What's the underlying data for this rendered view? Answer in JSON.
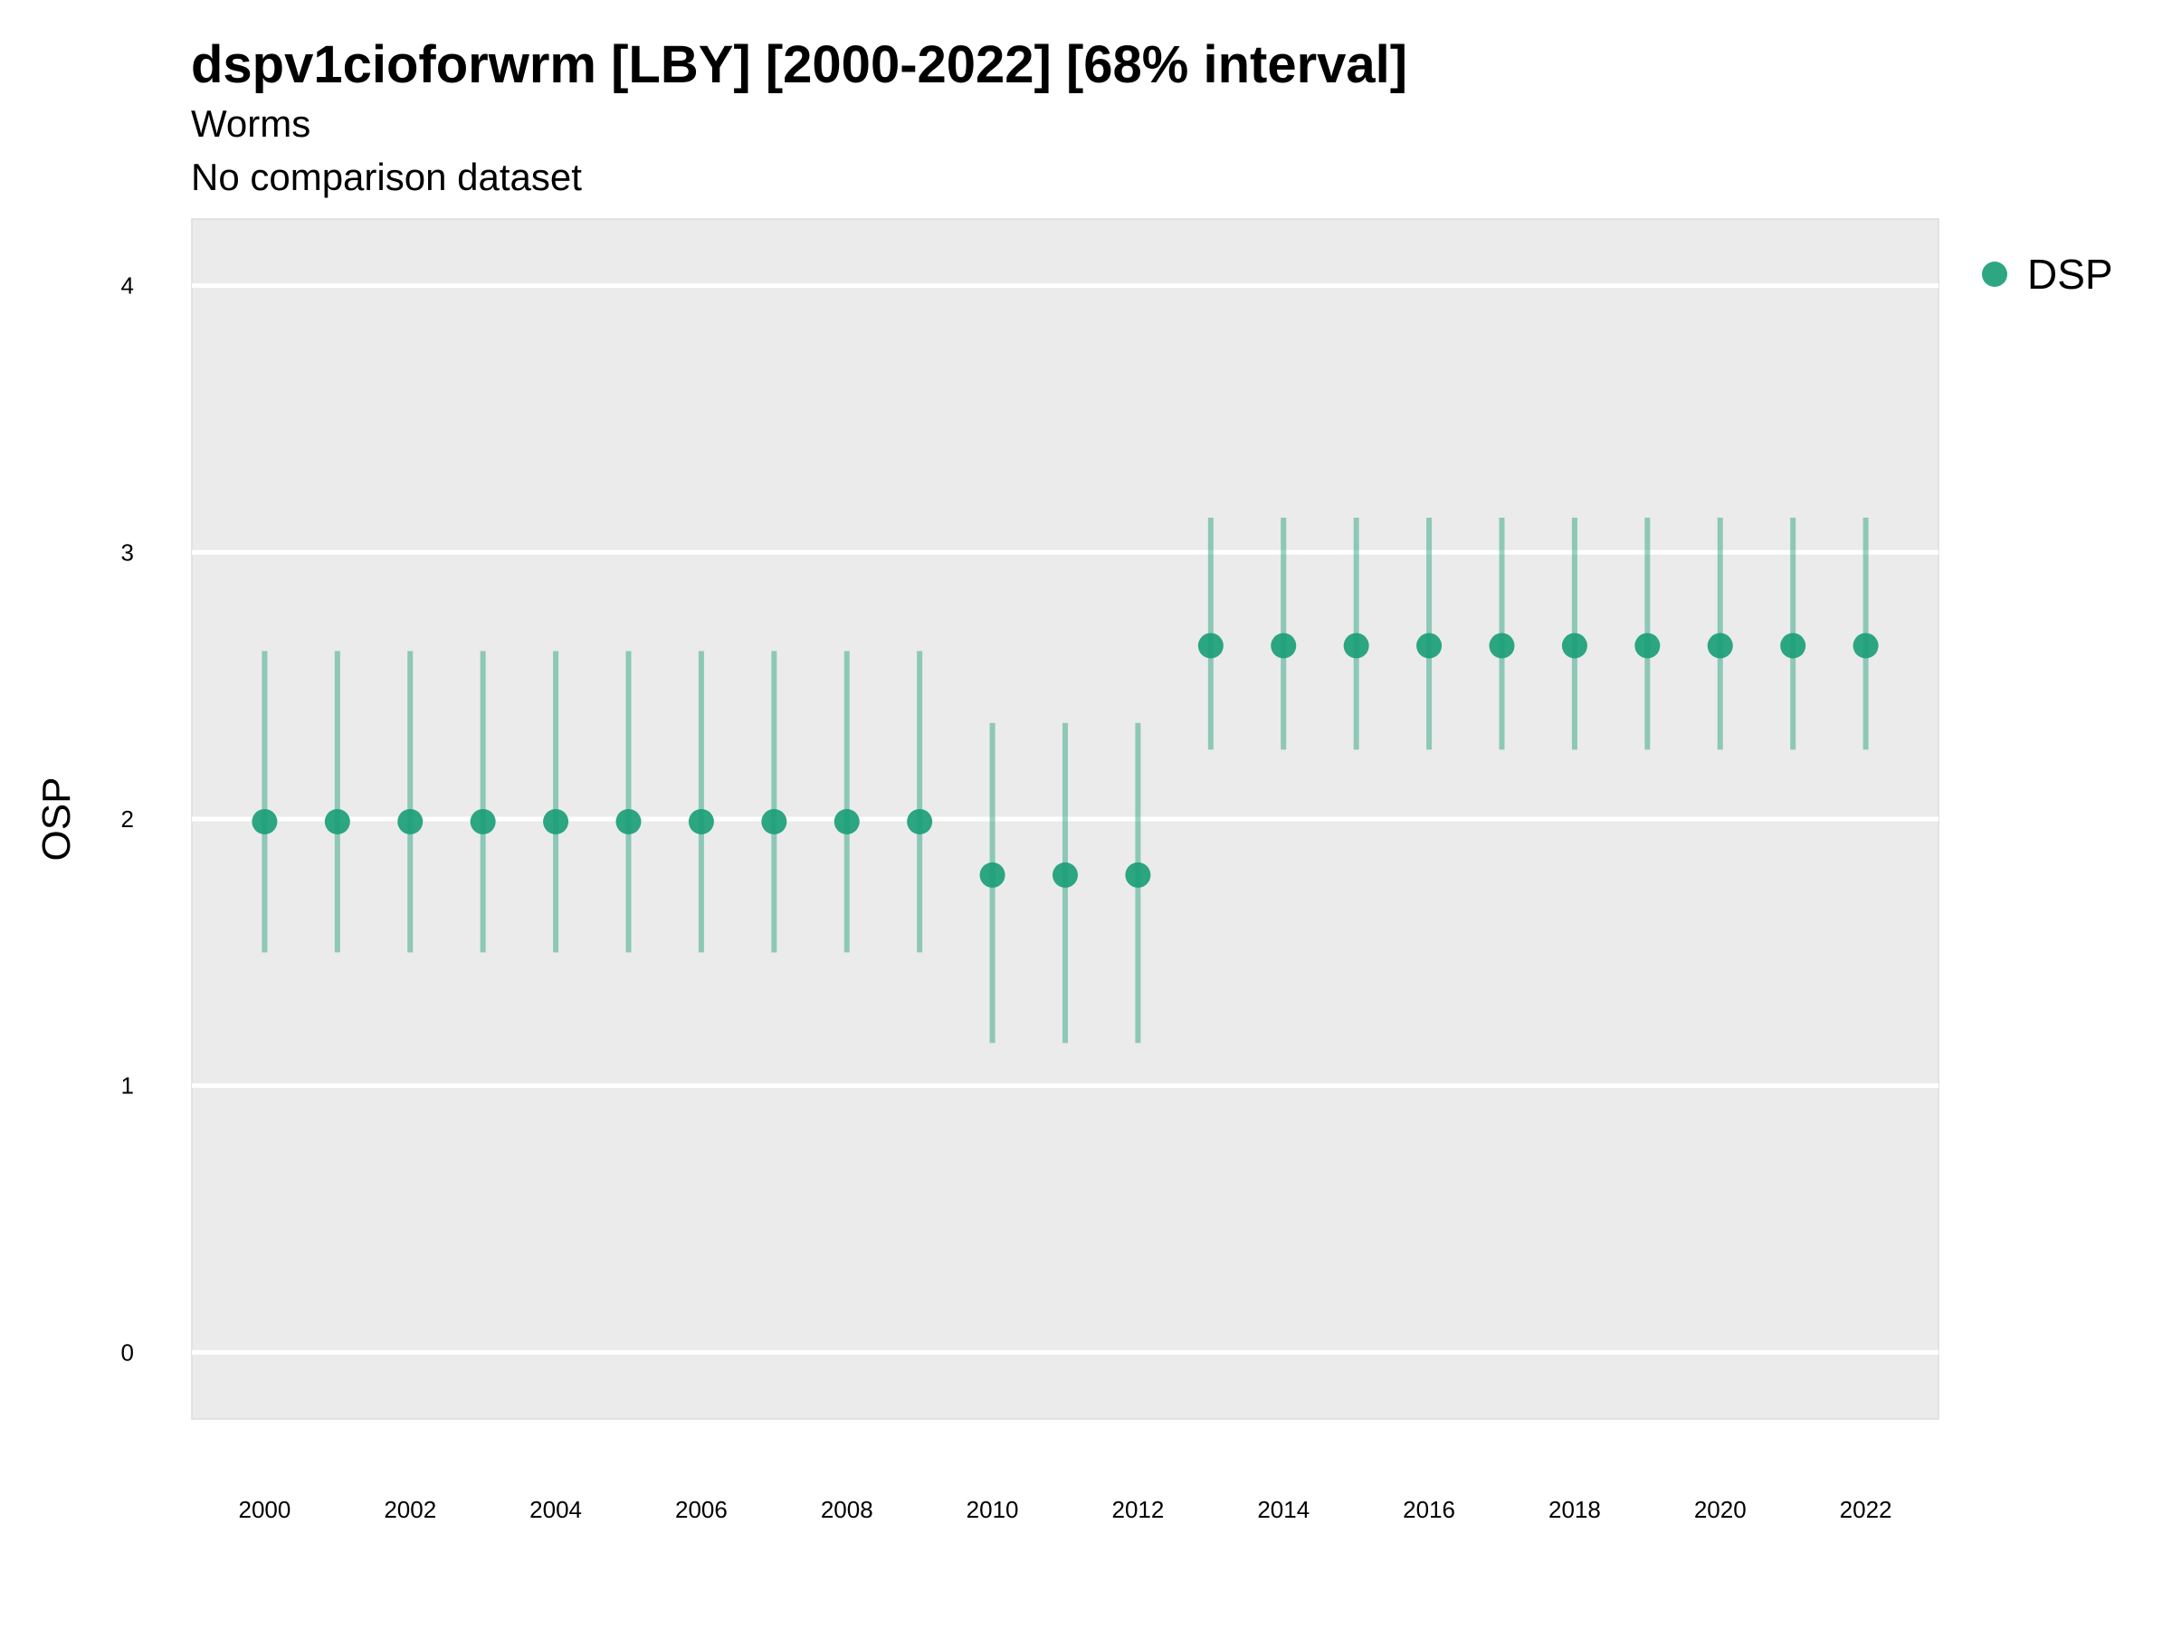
{
  "chart_data": {
    "type": "scatter",
    "title": "dspv1cioforwrm [LBY] [2000-2022] [68% interval]",
    "subtitle": [
      "Worms",
      "No comparison dataset"
    ],
    "xlabel": "",
    "ylabel": "OSP",
    "xlim": [
      1999,
      2023
    ],
    "ylim": [
      -0.25,
      4.25
    ],
    "x_ticks": [
      2000,
      2002,
      2004,
      2006,
      2008,
      2010,
      2012,
      2014,
      2016,
      2018,
      2020,
      2022
    ],
    "y_ticks": [
      0,
      1,
      2,
      3,
      4
    ],
    "grid": true,
    "legend_position": "right",
    "series": [
      {
        "name": "DSP",
        "color": "#1b9e77",
        "points": [
          {
            "x": 2000,
            "y": 1.99,
            "lower": 1.5,
            "upper": 2.63
          },
          {
            "x": 2001,
            "y": 1.99,
            "lower": 1.5,
            "upper": 2.63
          },
          {
            "x": 2002,
            "y": 1.99,
            "lower": 1.5,
            "upper": 2.63
          },
          {
            "x": 2003,
            "y": 1.99,
            "lower": 1.5,
            "upper": 2.63
          },
          {
            "x": 2004,
            "y": 1.99,
            "lower": 1.5,
            "upper": 2.63
          },
          {
            "x": 2005,
            "y": 1.99,
            "lower": 1.5,
            "upper": 2.63
          },
          {
            "x": 2006,
            "y": 1.99,
            "lower": 1.5,
            "upper": 2.63
          },
          {
            "x": 2007,
            "y": 1.99,
            "lower": 1.5,
            "upper": 2.63
          },
          {
            "x": 2008,
            "y": 1.99,
            "lower": 1.5,
            "upper": 2.63
          },
          {
            "x": 2009,
            "y": 1.99,
            "lower": 1.5,
            "upper": 2.63
          },
          {
            "x": 2010,
            "y": 1.79,
            "lower": 1.16,
            "upper": 2.36
          },
          {
            "x": 2011,
            "y": 1.79,
            "lower": 1.16,
            "upper": 2.36
          },
          {
            "x": 2012,
            "y": 1.79,
            "lower": 1.16,
            "upper": 2.36
          },
          {
            "x": 2013,
            "y": 2.65,
            "lower": 2.26,
            "upper": 3.13
          },
          {
            "x": 2014,
            "y": 2.65,
            "lower": 2.26,
            "upper": 3.13
          },
          {
            "x": 2015,
            "y": 2.65,
            "lower": 2.26,
            "upper": 3.13
          },
          {
            "x": 2016,
            "y": 2.65,
            "lower": 2.26,
            "upper": 3.13
          },
          {
            "x": 2017,
            "y": 2.65,
            "lower": 2.26,
            "upper": 3.13
          },
          {
            "x": 2018,
            "y": 2.65,
            "lower": 2.26,
            "upper": 3.13
          },
          {
            "x": 2019,
            "y": 2.65,
            "lower": 2.26,
            "upper": 3.13
          },
          {
            "x": 2020,
            "y": 2.65,
            "lower": 2.26,
            "upper": 3.13
          },
          {
            "x": 2021,
            "y": 2.65,
            "lower": 2.26,
            "upper": 3.13
          },
          {
            "x": 2022,
            "y": 2.65,
            "lower": 2.26,
            "upper": 3.13
          }
        ]
      }
    ]
  }
}
